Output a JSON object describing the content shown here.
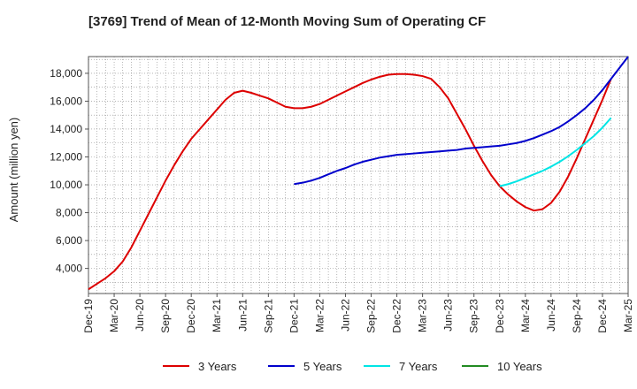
{
  "chart_data": {
    "type": "line",
    "title": "[3769]  Trend of Mean of 12-Month Moving Sum of Operating CF",
    "xlabel": "",
    "ylabel": "Amount (million yen)",
    "ylim": [
      2200,
      19200
    ],
    "yticks": [
      4000,
      6000,
      8000,
      10000,
      12000,
      14000,
      16000,
      18000
    ],
    "ytick_labels": [
      "4,000",
      "6,000",
      "8,000",
      "10,000",
      "12,000",
      "14,000",
      "16,000",
      "18,000"
    ],
    "x_labels": [
      "Dec-19",
      "Mar-20",
      "Jun-20",
      "Sep-20",
      "Dec-20",
      "Mar-21",
      "Jun-21",
      "Sep-21",
      "Dec-21",
      "Mar-22",
      "Jun-22",
      "Sep-22",
      "Dec-22",
      "Mar-23",
      "Jun-23",
      "Sep-23",
      "Dec-23",
      "Mar-24",
      "Jun-24",
      "Sep-24",
      "Dec-24",
      "Mar-25"
    ],
    "x_months_range": [
      0,
      63
    ],
    "grid": true,
    "legend_position": "bottom",
    "series": [
      {
        "name": "3 Years",
        "color": "#dd0000",
        "start_month": 0,
        "values": [
          2500,
          2900,
          3300,
          3800,
          4500,
          5500,
          6700,
          7900,
          9100,
          10300,
          11400,
          12400,
          13300,
          14000,
          14700,
          15400,
          16100,
          16600,
          16750,
          16600,
          16400,
          16200,
          15900,
          15600,
          15500,
          15500,
          15600,
          15800,
          16100,
          16400,
          16700,
          17000,
          17300,
          17550,
          17750,
          17900,
          17950,
          17950,
          17900,
          17800,
          17600,
          17000,
          16200,
          15100,
          14000,
          12800,
          11700,
          10700,
          9900,
          9300,
          8800,
          8400,
          8150,
          8250,
          8700,
          9500,
          10600,
          11900,
          13300,
          14700,
          16100,
          17600
        ]
      },
      {
        "name": "5 Years",
        "color": "#0000cc",
        "start_month": 24,
        "values": [
          10050,
          10150,
          10300,
          10500,
          10750,
          11000,
          11200,
          11450,
          11650,
          11800,
          11950,
          12050,
          12150,
          12200,
          12250,
          12300,
          12350,
          12400,
          12450,
          12500,
          12600,
          12650,
          12700,
          12750,
          12800,
          12900,
          13000,
          13150,
          13350,
          13600,
          13850,
          14150,
          14550,
          15000,
          15500,
          16100,
          16800,
          17600,
          18400,
          19200
        ]
      },
      {
        "name": "7 Years",
        "color": "#00e5e5",
        "start_month": 48,
        "values": [
          9900,
          10050,
          10250,
          10500,
          10750,
          11000,
          11300,
          11650,
          12050,
          12500,
          13000,
          13500,
          14100,
          14800
        ]
      },
      {
        "name": "10 Years",
        "color": "#228b22",
        "start_month": 0,
        "values": []
      }
    ]
  }
}
